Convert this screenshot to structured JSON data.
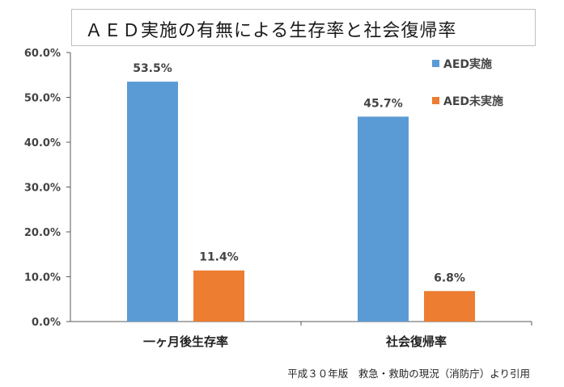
{
  "chart_data": {
    "type": "bar",
    "title": "ＡＥＤ実施の有無による生存率と社会復帰率",
    "categories": [
      "一ヶ月後生存率",
      "社会復帰率"
    ],
    "series": [
      {
        "name": "AED実施",
        "values": [
          53.5,
          45.7
        ],
        "labels": [
          "53.5%",
          "45.7%"
        ],
        "color": "#5b9bd5"
      },
      {
        "name": "AED未実施",
        "values": [
          11.4,
          6.8
        ],
        "labels": [
          "11.4%",
          "6.8%"
        ],
        "color": "#ed7d31"
      }
    ],
    "ylim": [
      0,
      60
    ],
    "yticks": [
      {
        "value": 60,
        "label": "60.0%"
      },
      {
        "value": 50,
        "label": "50.0%"
      },
      {
        "value": 40,
        "label": "40.0%"
      },
      {
        "value": 30,
        "label": "30.0%"
      },
      {
        "value": 20,
        "label": "20.0%"
      },
      {
        "value": 10,
        "label": "10.0%"
      },
      {
        "value": 0,
        "label": "0.0%"
      }
    ],
    "grid": false,
    "legend_position": "top-right"
  },
  "source_note": "平成３０年版　救急・救助の現況（消防庁）より引用"
}
